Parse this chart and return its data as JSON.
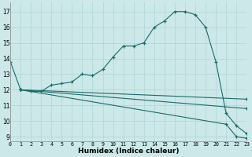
{
  "xlabel": "Humidex (Indice chaleur)",
  "bg_color": "#cce8e8",
  "line_color": "#1a6b6b",
  "grid_color": "#afd4d4",
  "xlim": [
    0,
    23
  ],
  "ylim": [
    9,
    17.5
  ],
  "yticks": [
    9,
    10,
    11,
    12,
    13,
    14,
    15,
    16,
    17
  ],
  "xticks": [
    0,
    1,
    2,
    3,
    4,
    5,
    6,
    7,
    8,
    9,
    10,
    11,
    12,
    13,
    14,
    15,
    16,
    17,
    18,
    19,
    20,
    21,
    22,
    23
  ],
  "series": [
    {
      "x": [
        0,
        1,
        2,
        3,
        4,
        5,
        6,
        7,
        8,
        9,
        10,
        11,
        12,
        13,
        14,
        15,
        16,
        17,
        18,
        19,
        20,
        21,
        22,
        23
      ],
      "y": [
        13.8,
        12.0,
        11.9,
        11.9,
        12.3,
        12.4,
        12.5,
        13.0,
        12.9,
        13.3,
        14.1,
        14.8,
        14.8,
        15.0,
        16.0,
        16.4,
        17.0,
        17.0,
        16.8,
        16.0,
        13.8,
        10.5,
        9.7,
        9.2
      ]
    },
    {
      "x": [
        1,
        23
      ],
      "y": [
        12.0,
        11.4
      ]
    },
    {
      "x": [
        1,
        23
      ],
      "y": [
        12.0,
        10.8
      ]
    },
    {
      "x": [
        1,
        21,
        22,
        23
      ],
      "y": [
        12.0,
        9.8,
        9.0,
        8.9
      ]
    }
  ]
}
